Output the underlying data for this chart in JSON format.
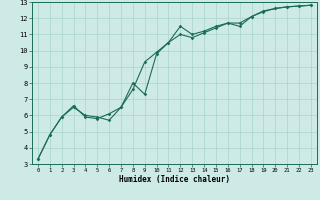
{
  "xlabel": "Humidex (Indice chaleur)",
  "bg_color": "#ceeae6",
  "grid_color": "#aad4cf",
  "line_color": "#1a6b5a",
  "spine_color": "#1a6b5a",
  "xlim": [
    -0.5,
    23.5
  ],
  "ylim": [
    3,
    13
  ],
  "xticks": [
    0,
    1,
    2,
    3,
    4,
    5,
    6,
    7,
    8,
    9,
    10,
    11,
    12,
    13,
    14,
    15,
    16,
    17,
    18,
    19,
    20,
    21,
    22,
    23
  ],
  "yticks": [
    3,
    4,
    5,
    6,
    7,
    8,
    9,
    10,
    11,
    12,
    13
  ],
  "line1_x": [
    0,
    1,
    2,
    3,
    4,
    5,
    6,
    7,
    8,
    9,
    10,
    11,
    12,
    13,
    14,
    15,
    16,
    17,
    18,
    19,
    20,
    21,
    22,
    23
  ],
  "line1_y": [
    3.3,
    4.8,
    5.9,
    6.5,
    6.0,
    5.9,
    5.7,
    6.5,
    7.6,
    9.3,
    9.9,
    10.5,
    11.0,
    10.8,
    11.1,
    11.4,
    11.7,
    11.5,
    12.1,
    12.45,
    12.6,
    12.7,
    12.75,
    12.8
  ],
  "line2_x": [
    0,
    1,
    2,
    3,
    4,
    5,
    6,
    7,
    8,
    9,
    10,
    11,
    12,
    13,
    14,
    15,
    16,
    17,
    18,
    19,
    20,
    21,
    22,
    23
  ],
  "line2_y": [
    3.3,
    4.8,
    5.9,
    6.6,
    5.9,
    5.8,
    6.1,
    6.5,
    8.0,
    7.3,
    9.8,
    10.5,
    11.5,
    11.0,
    11.2,
    11.5,
    11.7,
    11.7,
    12.1,
    12.4,
    12.6,
    12.7,
    12.75,
    12.8
  ]
}
